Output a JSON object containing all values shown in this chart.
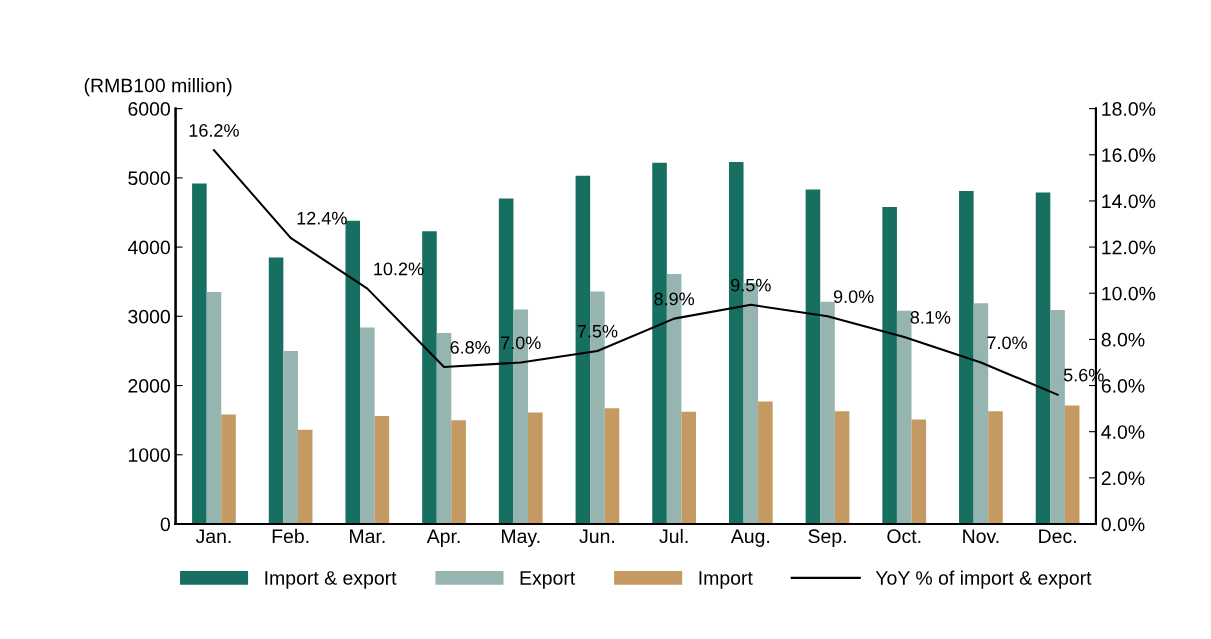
{
  "chart_data": {
    "type": "bar",
    "ylabel": "(RMB100 million)",
    "categories": [
      "Jan.",
      "Feb.",
      "Mar.",
      "Apr.",
      "May.",
      "Jun.",
      "Jul.",
      "Aug.",
      "Sep.",
      "Oct.",
      "Nov.",
      "Dec."
    ],
    "series": [
      {
        "name": "Import & export",
        "color": "#166f61",
        "values": [
          4920,
          3850,
          4380,
          4230,
          4700,
          5030,
          5220,
          5230,
          4830,
          4580,
          4810,
          4790
        ]
      },
      {
        "name": "Export",
        "color": "#96b5b0",
        "values": [
          3350,
          2500,
          2840,
          2760,
          3100,
          3360,
          3610,
          3480,
          3210,
          3080,
          3190,
          3090
        ]
      },
      {
        "name": "Import",
        "color": "#c49a62",
        "values": [
          1580,
          1360,
          1560,
          1500,
          1610,
          1670,
          1620,
          1770,
          1630,
          1510,
          1630,
          1710
        ]
      },
      {
        "name": "YoY % of import & export",
        "type": "line",
        "axis": "y2",
        "color": "#000000",
        "data_labels": true,
        "value_labels": [
          "16.2%",
          "12.4%",
          "10.2%",
          "6.8%",
          "7.0%",
          "7.5%",
          "8.9%",
          "9.5%",
          "9.0%",
          "8.1%",
          "7.0%",
          "5.6%"
        ],
        "values": [
          16.2,
          12.4,
          10.2,
          6.8,
          7.0,
          7.5,
          8.9,
          9.5,
          9.0,
          8.1,
          7.0,
          5.6
        ]
      }
    ],
    "ylim": [
      0,
      6000
    ],
    "yticks": [
      0,
      1000,
      2000,
      3000,
      4000,
      5000,
      6000
    ],
    "y2lim": [
      0,
      18
    ],
    "y2ticks": [
      {
        "value": 0,
        "label": "0.0%"
      },
      {
        "value": 2,
        "label": "2.0%"
      },
      {
        "value": 4,
        "label": "4.0%"
      },
      {
        "value": 6,
        "label": "6.0%"
      },
      {
        "value": 8,
        "label": "8.0%"
      },
      {
        "value": 10,
        "label": "10.0%"
      },
      {
        "value": 12,
        "label": "12.0%"
      },
      {
        "value": 14,
        "label": "14.0%"
      },
      {
        "value": 16,
        "label": "16.0%"
      },
      {
        "value": 18,
        "label": "18.0%"
      }
    ],
    "grid": false,
    "legend": "bottom",
    "marker": "none",
    "line_style": "solid"
  }
}
